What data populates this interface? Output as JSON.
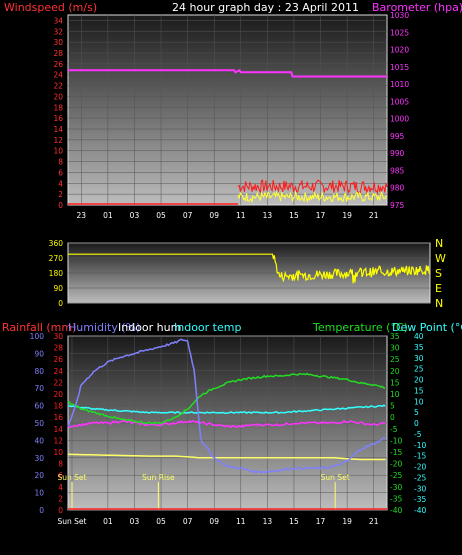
{
  "title": "24 hour graph day : 23 April 2011",
  "colors": {
    "wind": "#ff1a1a",
    "gust": "#ffff33",
    "baro": "#ff33ff",
    "dir": "#ffff00",
    "rain": "#ff2222",
    "humidity": "#8080ff",
    "indoor_hum": "#ffffff",
    "indoor_temp": "#33ffff",
    "temperature": "#22dd22",
    "dewpoint": "#33ffff",
    "axis_left": "#ff3333",
    "axis_right": "#ff33ff",
    "rain_axis_right": "#ffff66"
  },
  "chart_data": [
    {
      "type": "line",
      "id": "wind",
      "ylabel": "Windspeed (m/s)",
      "y2label": "Barometer (hpa)",
      "y_ticks": [
        "0",
        "2",
        "4",
        "6",
        "8",
        "10",
        "12",
        "14",
        "16",
        "18",
        "20",
        "22",
        "24",
        "26",
        "28",
        "30",
        "32",
        "34"
      ],
      "y2_ticks": [
        "975",
        "980",
        "985",
        "990",
        "995",
        "1000",
        "1005",
        "1010",
        "1015",
        "1020",
        "1025",
        "1030"
      ],
      "ylim": [
        0,
        35
      ],
      "y2lim": [
        975,
        1030
      ],
      "x_ticks": [
        "23",
        "01",
        "03",
        "05",
        "07",
        "09",
        "11",
        "13",
        "15",
        "17",
        "19",
        "21"
      ],
      "barometer": {
        "x": [
          0,
          12.5,
          12.6,
          12.9,
          13.0,
          16.8,
          16.9,
          24
        ],
        "y": [
          1014,
          1014,
          1013.4,
          1014,
          1013.4,
          1013.4,
          1012.2,
          1012.2
        ]
      },
      "wind_start_hour": 12.8,
      "wind_level": 3.2,
      "gust_level": 1.3
    },
    {
      "type": "line",
      "id": "direction",
      "y_ticks": [
        "0",
        "90",
        "180",
        "270",
        "360"
      ],
      "ylim": [
        0,
        360
      ],
      "compass": [
        "N",
        "W",
        "S",
        "E",
        "N"
      ],
      "direction": {
        "x": [
          0,
          13.6,
          14.0,
          24
        ],
        "y": [
          293,
          293,
          160,
          200
        ]
      }
    },
    {
      "type": "line",
      "id": "climate",
      "labels": {
        "rainfall": "Rainfall (mm)",
        "humidity": "Humidity (%)",
        "indoor_hum": "Indoor hum",
        "indoor_temp": "Indoor temp",
        "temperature": "Temperature (°C)",
        "dewpoint": "Dew Point (°C)"
      },
      "humidity_ticks": [
        "0",
        "10",
        "20",
        "30",
        "40",
        "50",
        "60",
        "70",
        "80",
        "90",
        "100"
      ],
      "rain_ticks": [
        "0",
        "2",
        "4",
        "6",
        "8",
        "10",
        "12",
        "14",
        "16",
        "18",
        "20",
        "22",
        "24",
        "26",
        "28",
        "30"
      ],
      "temp_ticks": [
        "35",
        "30",
        "25",
        "20",
        "15",
        "10",
        "5",
        "0",
        "-5",
        "-10",
        "-15",
        "-20",
        "-25",
        "-30",
        "-35",
        "-40"
      ],
      "dew_ticks": [
        "40",
        "35",
        "30",
        "25",
        "20",
        "15",
        "10",
        "5",
        "0",
        "-5",
        "-10",
        "-15",
        "-20",
        "-25",
        "-30",
        "-35",
        "-40"
      ],
      "x_ticks": [
        "Sun Set",
        "01",
        "03",
        "05",
        "07",
        "09",
        "11",
        "13",
        "15",
        "17",
        "19",
        "21"
      ],
      "markers": [
        {
          "label": "Sun Set",
          "hour": 0.3
        },
        {
          "label": "Sun Rise",
          "hour": 6.8
        },
        {
          "label": "Sun Set",
          "hour": 20.1
        }
      ],
      "humidity": {
        "x": [
          0,
          0.5,
          1,
          1.5,
          2,
          3,
          4,
          5,
          6,
          7,
          8,
          8.6,
          9.0,
          9.5,
          10,
          11,
          12,
          13,
          14,
          15,
          16,
          17,
          18,
          19,
          20,
          21,
          22,
          23,
          24
        ],
        "y": [
          48,
          58,
          72,
          76,
          80,
          85,
          88,
          90,
          92,
          94,
          96,
          98,
          97,
          80,
          40,
          30,
          25,
          24,
          22,
          22,
          23,
          24,
          24,
          24,
          25,
          28,
          35,
          38,
          42
        ]
      },
      "indoor_hum": {
        "x": [
          0,
          6,
          8,
          10,
          12,
          14,
          16,
          18,
          20,
          22,
          24
        ],
        "y": [
          32,
          31,
          31,
          30,
          30,
          30,
          30,
          30,
          30,
          29,
          29
        ]
      },
      "indoor_temp": {
        "x": [
          0,
          2,
          4,
          6,
          8,
          10,
          12,
          14,
          16,
          18,
          20,
          22,
          24
        ],
        "y": [
          60,
          58,
          57,
          56,
          56,
          56,
          56,
          56,
          56,
          57,
          58,
          59,
          60
        ]
      },
      "temperature": {
        "x": [
          0,
          0.5,
          1,
          2,
          3,
          4,
          5,
          6,
          7,
          8,
          9,
          10,
          11,
          12,
          13,
          14,
          15,
          16,
          17,
          18,
          19,
          20,
          21,
          22,
          23,
          24
        ],
        "y": [
          62,
          60,
          58,
          56,
          54,
          52,
          51,
          50,
          50,
          53,
          58,
          66,
          70,
          73,
          75,
          76,
          77,
          77,
          78,
          78,
          77,
          76,
          75,
          73,
          72,
          70
        ]
      },
      "dewpoint": {
        "x": [
          0,
          1,
          2,
          3,
          4,
          5,
          6,
          7,
          8,
          9,
          10,
          11,
          12,
          13,
          14,
          15,
          16,
          17,
          18,
          19,
          20,
          21,
          22,
          23,
          24
        ],
        "y": [
          48,
          49,
          50,
          50,
          51,
          50,
          49,
          49,
          50,
          51,
          50,
          49,
          48,
          48,
          49,
          49,
          49,
          50,
          50,
          50,
          50,
          51,
          50,
          49,
          50
        ]
      },
      "rainfall": {
        "x": [
          0,
          24
        ],
        "y": [
          0,
          0
        ]
      }
    }
  ]
}
